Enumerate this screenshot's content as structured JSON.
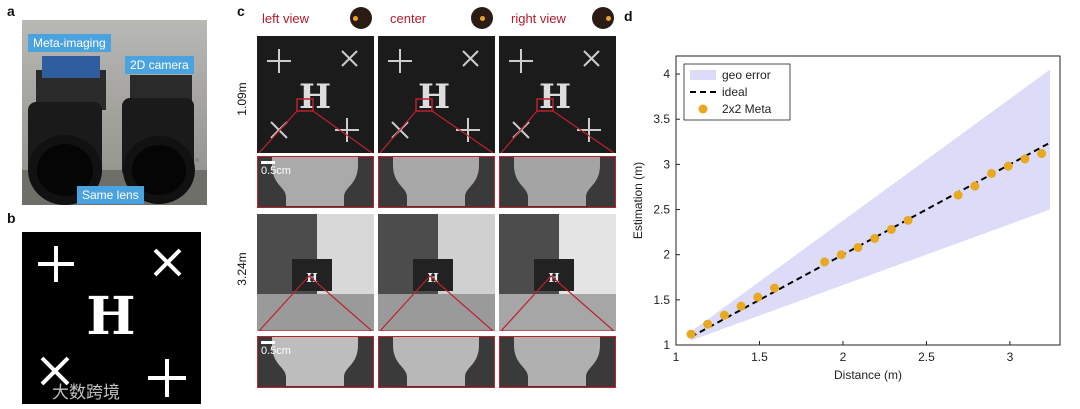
{
  "panels": {
    "a": "a",
    "b": "b",
    "c": "c",
    "d": "d"
  },
  "panel_a": {
    "labels": {
      "meta": "Meta-imaging",
      "camera": "2D camera",
      "lens": "Same lens"
    }
  },
  "panel_c": {
    "views": [
      "left view",
      "center",
      "right view"
    ],
    "rows": [
      "1.09m",
      "3.24m"
    ],
    "scale": "0.5cm",
    "colors": {
      "view_label": "#b5192b",
      "highlight": "#c0202e",
      "dot": "#f0a020"
    }
  },
  "watermark": "大数跨境",
  "chart_data": {
    "type": "line",
    "title": "",
    "xlabel": "Distance (m)",
    "ylabel": "Estimation (m)",
    "xlim": [
      1,
      3.3
    ],
    "ylim": [
      1,
      4.2
    ],
    "xticks": [
      "1",
      "1.5",
      "2",
      "2.5",
      "3"
    ],
    "yticks": [
      "1",
      "1.5",
      "2",
      "2.5",
      "3",
      "3.5",
      "4"
    ],
    "legend_position": "top-left",
    "legend": [
      "geo error",
      "ideal",
      "2x2 Meta"
    ],
    "colors": {
      "band": "#dcdcf8",
      "ideal": "#000000",
      "meta": "#e8a820"
    },
    "geo_error_band": {
      "x": [
        1.09,
        3.24
      ],
      "lower": [
        1.05,
        2.5
      ],
      "upper": [
        1.15,
        4.05
      ]
    },
    "ideal": {
      "x": [
        1.09,
        3.24
      ],
      "y": [
        1.09,
        3.24
      ]
    },
    "series": [
      {
        "name": "2x2 Meta",
        "x": [
          1.09,
          1.19,
          1.29,
          1.39,
          1.49,
          1.59,
          1.89,
          1.99,
          2.09,
          2.19,
          2.29,
          2.39,
          2.69,
          2.79,
          2.89,
          2.99,
          3.09,
          3.19
        ],
        "y": [
          1.12,
          1.23,
          1.33,
          1.43,
          1.53,
          1.63,
          1.92,
          2.0,
          2.08,
          2.18,
          2.28,
          2.38,
          2.66,
          2.76,
          2.9,
          2.98,
          3.06,
          3.12
        ]
      }
    ]
  }
}
